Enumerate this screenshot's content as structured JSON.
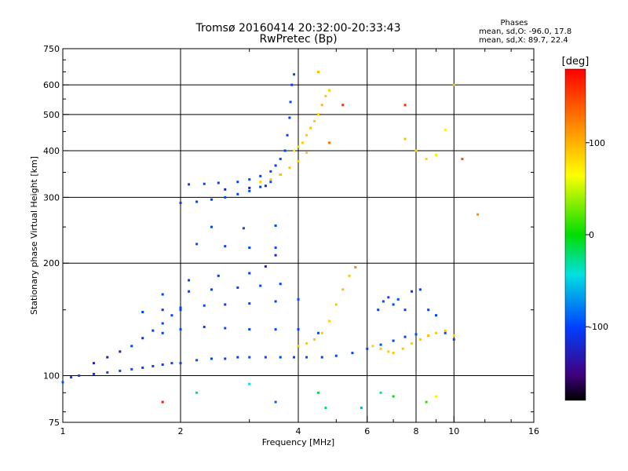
{
  "chart_data": {
    "type": "scatter",
    "title": "Tromsø 20160414 20:32:00-20:33:43",
    "subtitle": "RwPretec (Bp)",
    "xlabel": "Frequency [MHz]",
    "ylabel": "Stationary phase Virtual Height [km]",
    "x_scale": "log",
    "y_scale": "log",
    "xlim": [
      1,
      16
    ],
    "ylim": [
      75,
      750
    ],
    "x_ticks": [
      1,
      2,
      4,
      6,
      8,
      10,
      16
    ],
    "x_tick_labels": [
      "1",
      "2",
      "4",
      "6",
      "8",
      "10",
      "16"
    ],
    "x_gridlines": [
      2,
      4,
      6,
      8,
      10
    ],
    "y_ticks": [
      75,
      100,
      200,
      300,
      400,
      500,
      600,
      750
    ],
    "y_tick_labels": [
      "75",
      "100",
      "200",
      "300",
      "400",
      "500",
      "600",
      "750"
    ],
    "y_gridlines": [
      100,
      200,
      300,
      400,
      500,
      600
    ],
    "grid": true,
    "phase_info": {
      "heading": "Phases",
      "line_o": "mean, sd,O: -96.0, 17.8",
      "line_x": "mean, sd,X:  89.7, 22.4"
    },
    "colorbar": {
      "label": "[deg]",
      "range": [
        -180,
        180
      ],
      "tick_values": [
        100,
        0,
        -100
      ],
      "tick_labels": [
        "100",
        "0",
        "-100"
      ]
    },
    "series": [
      {
        "points": [
          [
            1.0,
            96,
            -95
          ],
          [
            1.05,
            99,
            -100
          ],
          [
            1.1,
            100,
            -98
          ],
          [
            1.2,
            101,
            -102
          ],
          [
            1.3,
            102,
            -96
          ],
          [
            1.4,
            103,
            -100
          ],
          [
            1.5,
            104,
            -95
          ],
          [
            1.6,
            105,
            -100
          ],
          [
            1.7,
            106,
            -98
          ],
          [
            1.8,
            107,
            -102
          ],
          [
            1.9,
            108,
            -97
          ],
          [
            2.0,
            108,
            -100
          ],
          [
            2.2,
            110,
            -96
          ],
          [
            2.4,
            111,
            -100
          ],
          [
            2.6,
            111,
            -98
          ],
          [
            2.8,
            112,
            -102
          ],
          [
            3.0,
            112,
            -95
          ],
          [
            3.3,
            112,
            -100
          ],
          [
            3.6,
            112,
            -98
          ],
          [
            3.9,
            112,
            -100
          ],
          [
            4.2,
            112,
            -95
          ],
          [
            4.6,
            112,
            -100
          ],
          [
            5.0,
            113,
            -97
          ],
          [
            5.5,
            115,
            -98
          ],
          [
            6.0,
            118,
            -100
          ],
          [
            6.5,
            121,
            -95
          ],
          [
            7.0,
            124,
            -98
          ],
          [
            7.5,
            127,
            -100
          ],
          [
            8.0,
            129,
            -96
          ],
          [
            1.2,
            108,
            -125
          ],
          [
            1.3,
            112,
            -130
          ],
          [
            1.4,
            116,
            -128
          ],
          [
            1.5,
            120,
            -100
          ],
          [
            1.6,
            126,
            -110
          ],
          [
            1.7,
            132,
            -105
          ],
          [
            1.8,
            138,
            -100
          ],
          [
            1.9,
            145,
            -98
          ],
          [
            2.0,
            150,
            -100
          ],
          [
            1.8,
            130,
            -100
          ],
          [
            2.0,
            133,
            -98
          ],
          [
            2.3,
            135,
            -100
          ],
          [
            2.6,
            134,
            -96
          ],
          [
            3.0,
            133,
            -100
          ],
          [
            3.5,
            133,
            -98
          ],
          [
            4.0,
            133,
            -100
          ],
          [
            4.5,
            130,
            -95
          ],
          [
            1.6,
            148,
            -100
          ],
          [
            1.8,
            150,
            -110
          ],
          [
            2.0,
            152,
            -100
          ],
          [
            2.3,
            154,
            -96
          ],
          [
            2.6,
            155,
            -100
          ],
          [
            3.0,
            156,
            -98
          ],
          [
            3.5,
            158,
            -100
          ],
          [
            4.0,
            160,
            -95
          ],
          [
            1.8,
            165,
            -100
          ],
          [
            2.1,
            168,
            -98
          ],
          [
            2.4,
            170,
            -102
          ],
          [
            2.8,
            172,
            -100
          ],
          [
            3.2,
            174,
            -96
          ],
          [
            3.6,
            176,
            -100
          ],
          [
            2.1,
            180,
            -98
          ],
          [
            2.5,
            185,
            -100
          ],
          [
            3.0,
            188,
            -104
          ],
          [
            3.3,
            196,
            -125
          ],
          [
            3.5,
            210,
            -120
          ],
          [
            2.1,
            325,
            -100
          ],
          [
            2.3,
            326,
            -98
          ],
          [
            2.5,
            328,
            -102
          ],
          [
            2.8,
            330,
            -100
          ],
          [
            3.0,
            335,
            -96
          ],
          [
            3.2,
            342,
            -100
          ],
          [
            3.4,
            352,
            -98
          ],
          [
            3.5,
            365,
            -100
          ],
          [
            3.6,
            380,
            -95
          ],
          [
            3.7,
            400,
            -100
          ],
          [
            3.75,
            440,
            -98
          ],
          [
            3.8,
            490,
            -100
          ],
          [
            3.82,
            540,
            -96
          ],
          [
            3.85,
            600,
            -100
          ],
          [
            3.9,
            640,
            -98
          ],
          [
            2.0,
            290,
            -100
          ],
          [
            2.2,
            292,
            -98
          ],
          [
            2.4,
            296,
            -100
          ],
          [
            2.6,
            300,
            -96
          ],
          [
            2.8,
            306,
            -100
          ],
          [
            3.0,
            312,
            -98
          ],
          [
            3.2,
            320,
            -100
          ],
          [
            3.4,
            330,
            -95
          ],
          [
            3.6,
            345,
            -100
          ],
          [
            2.6,
            315,
            -125
          ],
          [
            3.0,
            318,
            -128
          ],
          [
            3.3,
            322,
            -120
          ],
          [
            2.4,
            250,
            -100
          ],
          [
            2.9,
            248,
            -95
          ],
          [
            3.5,
            252,
            -98
          ],
          [
            2.2,
            225,
            -95
          ],
          [
            2.6,
            222,
            -100
          ],
          [
            3.0,
            220,
            -98
          ],
          [
            3.5,
            220,
            -95
          ],
          [
            6.4,
            150,
            -100
          ],
          [
            6.6,
            158,
            -95
          ],
          [
            6.8,
            162,
            -100
          ],
          [
            7.0,
            155,
            -98
          ],
          [
            7.2,
            160,
            -96
          ],
          [
            7.5,
            150,
            -100
          ],
          [
            7.8,
            168,
            -110
          ],
          [
            8.2,
            170,
            -100
          ],
          [
            8.6,
            150,
            -98
          ],
          [
            9.0,
            145,
            -100
          ],
          [
            9.5,
            130,
            -96
          ],
          [
            10.0,
            125,
            -100
          ],
          [
            3.9,
            400,
            80
          ],
          [
            4.0,
            410,
            85
          ],
          [
            4.1,
            420,
            90
          ],
          [
            4.2,
            440,
            88
          ],
          [
            4.3,
            460,
            92
          ],
          [
            4.4,
            480,
            90
          ],
          [
            4.5,
            500,
            85
          ],
          [
            4.6,
            530,
            95
          ],
          [
            4.7,
            560,
            90
          ],
          [
            4.8,
            580,
            88
          ],
          [
            3.2,
            330,
            85
          ],
          [
            3.4,
            335,
            90
          ],
          [
            3.6,
            345,
            88
          ],
          [
            3.8,
            360,
            92
          ],
          [
            4.0,
            375,
            90
          ],
          [
            4.2,
            395,
            85
          ],
          [
            4.0,
            120,
            90
          ],
          [
            4.2,
            122,
            88
          ],
          [
            4.4,
            125,
            92
          ],
          [
            4.6,
            130,
            90
          ],
          [
            4.8,
            140,
            85
          ],
          [
            5.0,
            155,
            90
          ],
          [
            5.2,
            170,
            95
          ],
          [
            5.4,
            185,
            90
          ],
          [
            5.6,
            195,
            120
          ],
          [
            6.2,
            120,
            85
          ],
          [
            6.5,
            118,
            90
          ],
          [
            6.8,
            116,
            88
          ],
          [
            7.0,
            115,
            92
          ],
          [
            7.4,
            118,
            90
          ],
          [
            7.8,
            122,
            85
          ],
          [
            8.2,
            125,
            90
          ],
          [
            8.6,
            128,
            95
          ],
          [
            9.0,
            130,
            88
          ],
          [
            9.5,
            132,
            90
          ],
          [
            10.0,
            128,
            85
          ],
          [
            8.0,
            400,
            80
          ],
          [
            8.5,
            380,
            85
          ],
          [
            9.0,
            390,
            60
          ],
          [
            7.5,
            430,
            95
          ],
          [
            9.5,
            455,
            70
          ],
          [
            5.2,
            530,
            160
          ],
          [
            4.8,
            420,
            130
          ],
          [
            7.5,
            530,
            160
          ],
          [
            10.5,
            380,
            145
          ],
          [
            11.5,
            270,
            115
          ],
          [
            10.0,
            600,
            90
          ],
          [
            4.5,
            650,
            95
          ],
          [
            2.2,
            90,
            -20
          ],
          [
            3.0,
            95,
            -40
          ],
          [
            4.5,
            90,
            -10
          ],
          [
            4.7,
            82,
            -20
          ],
          [
            6.5,
            90,
            -30
          ],
          [
            7.0,
            88,
            -5
          ],
          [
            8.5,
            85,
            10
          ],
          [
            9.0,
            88,
            70
          ],
          [
            5.8,
            82,
            -60
          ],
          [
            1.8,
            85,
            170
          ],
          [
            3.5,
            85,
            -90
          ]
        ]
      }
    ]
  }
}
